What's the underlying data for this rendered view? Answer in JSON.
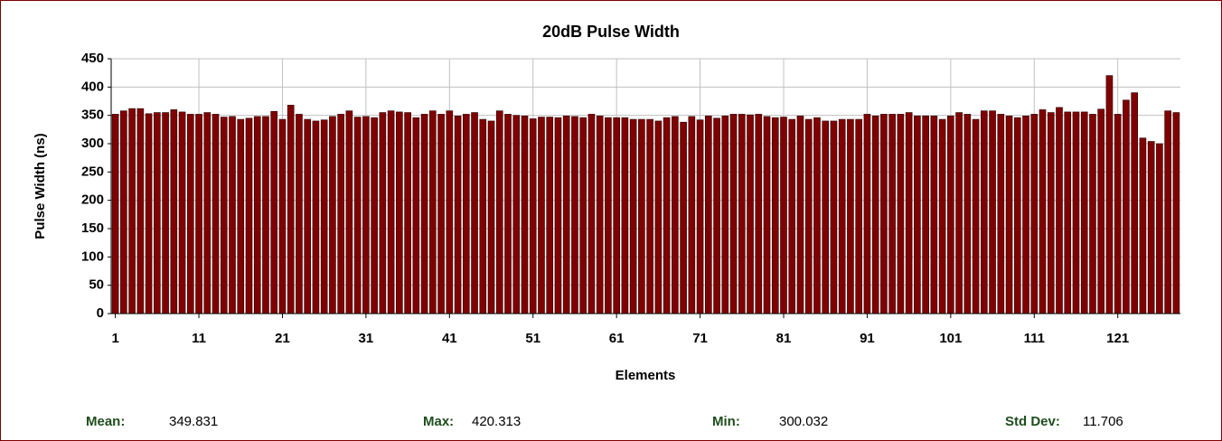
{
  "chart_data": {
    "type": "bar",
    "title": "20dB Pulse Width",
    "x_label": "Elements",
    "y_label": "Pulse Width (ns)",
    "categories": [
      1,
      null,
      null,
      null,
      null,
      null,
      null,
      null,
      null,
      null,
      11,
      null,
      null,
      null,
      null,
      null,
      null,
      null,
      null,
      null,
      21,
      null,
      null,
      null,
      null,
      null,
      null,
      null,
      null,
      null,
      31,
      null,
      null,
      null,
      null,
      null,
      null,
      null,
      null,
      null,
      41,
      null,
      null,
      null,
      null,
      null,
      null,
      null,
      null,
      null,
      51,
      null,
      null,
      null,
      null,
      null,
      null,
      null,
      null,
      null,
      61,
      null,
      null,
      null,
      null,
      null,
      null,
      null,
      null,
      null,
      71,
      null,
      null,
      null,
      null,
      null,
      null,
      null,
      null,
      null,
      81,
      null,
      null,
      null,
      null,
      null,
      null,
      null,
      null,
      null,
      91,
      null,
      null,
      null,
      null,
      null,
      null,
      null,
      null,
      null,
      101,
      null,
      null,
      null,
      null,
      null,
      null,
      null,
      null,
      null,
      111,
      null,
      null,
      null,
      null,
      null,
      null,
      null,
      null,
      null,
      121,
      null,
      null,
      null,
      null,
      null,
      null,
      null
    ],
    "values": [
      352,
      358,
      362,
      362,
      353,
      355,
      355,
      360,
      356,
      352,
      352,
      355,
      352,
      347,
      348,
      343,
      345,
      348,
      348,
      357,
      343,
      368,
      352,
      343,
      340,
      342,
      348,
      352,
      358,
      347,
      348,
      346,
      355,
      358,
      356,
      355,
      346,
      352,
      358,
      352,
      358,
      349,
      352,
      355,
      343,
      340,
      358,
      352,
      350,
      349,
      344,
      347,
      347,
      346,
      349,
      348,
      346,
      352,
      349,
      346,
      346,
      346,
      343,
      343,
      343,
      340,
      346,
      348,
      338,
      348,
      342,
      349,
      345,
      349,
      352,
      352,
      351,
      352,
      348,
      346,
      347,
      343,
      349,
      343,
      346,
      340,
      340,
      343,
      343,
      343,
      352,
      349,
      352,
      352,
      352,
      355,
      349,
      349,
      349,
      343,
      349,
      355,
      352,
      343,
      358,
      358,
      352,
      349,
      346,
      349,
      352,
      360,
      355,
      364,
      356,
      356,
      356,
      352,
      361,
      420.3,
      352,
      377,
      390,
      310,
      304,
      300,
      358,
      355
    ],
    "color": "#800000",
    "ylim": [
      0,
      450
    ],
    "yticks": [
      0,
      50,
      100,
      150,
      200,
      250,
      300,
      350,
      400,
      450
    ],
    "grid": true
  },
  "stats": [
    {
      "label": "Mean:",
      "value": 349.831
    },
    {
      "label": "Max:",
      "value": 420.313
    },
    {
      "label": "Min:",
      "value": 300.032
    },
    {
      "label": "Std Dev:",
      "value": 11.706
    }
  ]
}
